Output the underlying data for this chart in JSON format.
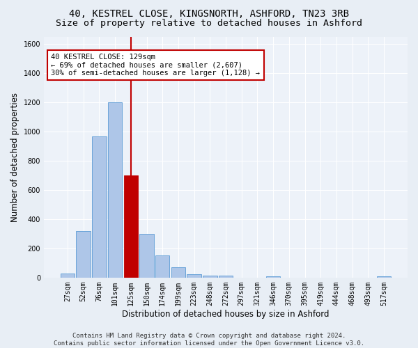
{
  "title_line1": "40, KESTREL CLOSE, KINGSNORTH, ASHFORD, TN23 3RB",
  "title_line2": "Size of property relative to detached houses in Ashford",
  "xlabel": "Distribution of detached houses by size in Ashford",
  "ylabel": "Number of detached properties",
  "bar_categories": [
    "27sqm",
    "52sqm",
    "76sqm",
    "101sqm",
    "125sqm",
    "150sqm",
    "174sqm",
    "199sqm",
    "223sqm",
    "248sqm",
    "272sqm",
    "297sqm",
    "321sqm",
    "346sqm",
    "370sqm",
    "395sqm",
    "419sqm",
    "444sqm",
    "468sqm",
    "493sqm",
    "517sqm"
  ],
  "bar_values": [
    30,
    320,
    965,
    1200,
    700,
    300,
    150,
    70,
    25,
    15,
    15,
    0,
    0,
    10,
    0,
    0,
    0,
    0,
    0,
    0,
    10
  ],
  "bar_color": "#aec6e8",
  "bar_edge_color": "#5b9bd5",
  "highlight_index": 4,
  "highlight_color": "#c00000",
  "annotation_text": "40 KESTREL CLOSE: 129sqm\n← 69% of detached houses are smaller (2,607)\n30% of semi-detached houses are larger (1,128) →",
  "annotation_box_color": "#c00000",
  "ylim": [
    0,
    1650
  ],
  "yticks": [
    0,
    200,
    400,
    600,
    800,
    1000,
    1200,
    1400,
    1600
  ],
  "footer_text": "Contains HM Land Registry data © Crown copyright and database right 2024.\nContains public sector information licensed under the Open Government Licence v3.0.",
  "bg_color": "#e8eef5",
  "plot_bg_color": "#edf2f9",
  "grid_color": "#ffffff",
  "title_fontsize": 10,
  "subtitle_fontsize": 9.5,
  "axis_label_fontsize": 8.5,
  "tick_fontsize": 7,
  "footer_fontsize": 6.5,
  "annotation_fontsize": 7.5
}
